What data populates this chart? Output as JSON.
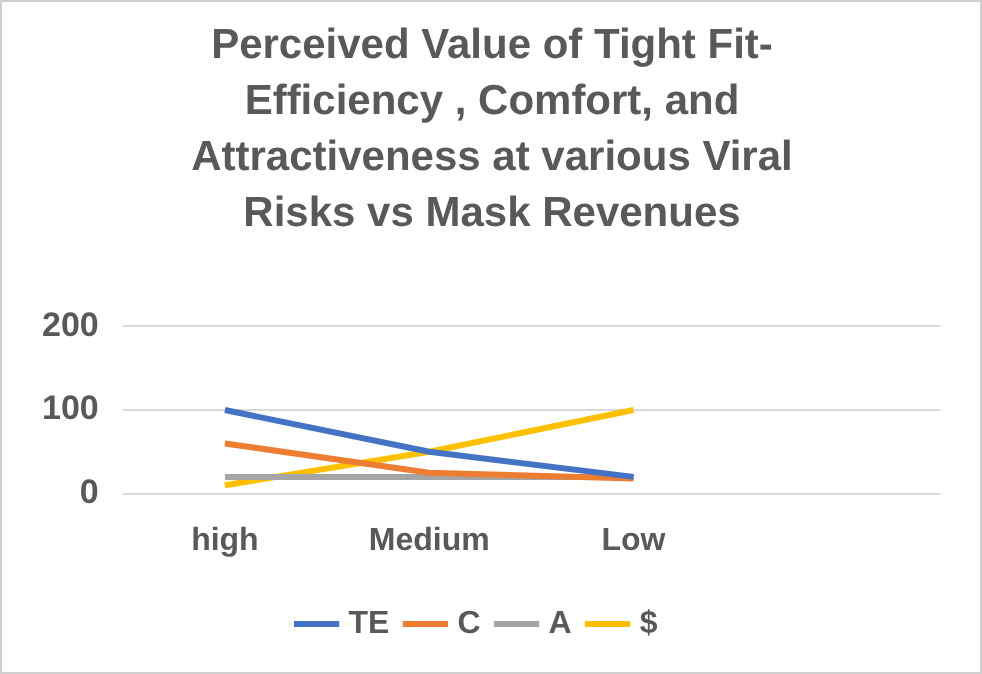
{
  "chart_data": {
    "type": "line",
    "title": "Perceived Value of Tight Fit-Efficiency , Comfort, and Attractiveness  at various Viral Risks vs Mask Revenues",
    "categories": [
      "high",
      "Medium",
      "Low",
      null
    ],
    "series": [
      {
        "name": "TE",
        "color": "#4472c4",
        "values": [
          100,
          50,
          20,
          null
        ]
      },
      {
        "name": "C",
        "color": "#ed7d31",
        "values": [
          60,
          25,
          18,
          null
        ]
      },
      {
        "name": "A",
        "color": "#a5a5a5",
        "values": [
          20,
          20,
          20,
          null
        ]
      },
      {
        "name": "$",
        "color": "#ffc000",
        "values": [
          10,
          50,
          100,
          null
        ]
      }
    ],
    "ylim": [
      0,
      200
    ],
    "yticks": [
      0,
      100,
      200
    ],
    "grid": "y",
    "legend": "bottom",
    "marker": "none",
    "line_style": "solid"
  }
}
